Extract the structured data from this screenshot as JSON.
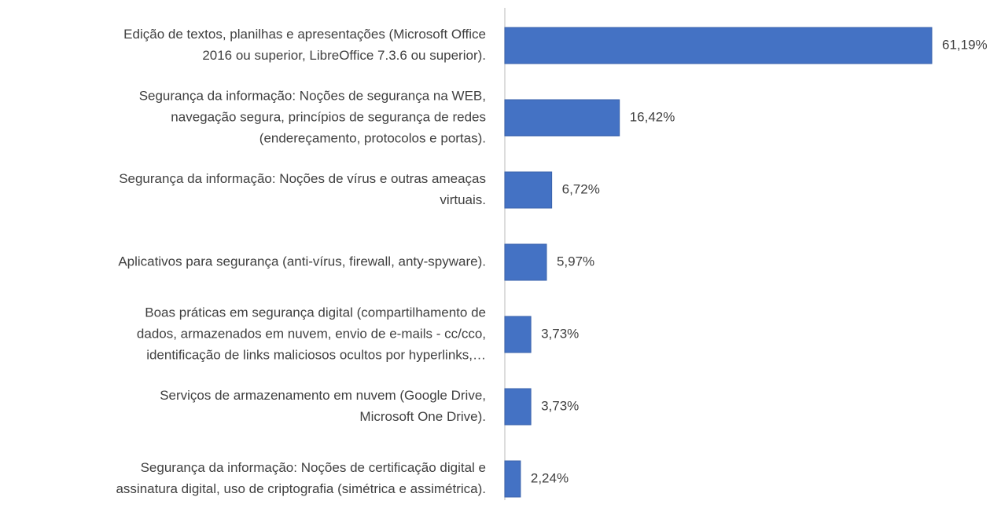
{
  "chart_data": {
    "type": "bar",
    "orientation": "horizontal",
    "color": "#4472c4",
    "categories": [
      [
        "Edição de textos, planilhas e apresentações (Microsoft Office",
        "2016 ou superior, LibreOffice 7.3.6 ou superior)."
      ],
      [
        "Segurança da informação: Noções de segurança na WEB,",
        "navegação segura, princípios de segurança de redes",
        "(endereçamento, protocolos e portas)."
      ],
      [
        "Segurança da informação: Noções de vírus e outras ameaças",
        "virtuais."
      ],
      [
        "Aplicativos para segurança (anti-vírus, firewall, anty-spyware)."
      ],
      [
        "Boas práticas em segurança digital (compartilhamento de",
        "dados, armazenados em nuvem, envio de e-mails - cc/cco,",
        "identificação de links maliciosos ocultos por hyperlinks,…"
      ],
      [
        "Serviços de armazenamento em nuvem (Google Drive,",
        "Microsoft One Drive)."
      ],
      [
        "Segurança da informação: Noções de certificação digital e",
        "assinatura digital, uso de criptografia (simétrica e assimétrica)."
      ]
    ],
    "values": [
      61.19,
      16.42,
      6.72,
      5.97,
      3.73,
      3.73,
      2.24
    ],
    "value_labels": [
      "61,19%",
      "16,42%",
      "6,72%",
      "5,97%",
      "3,73%",
      "3,73%",
      "2,24%"
    ]
  }
}
